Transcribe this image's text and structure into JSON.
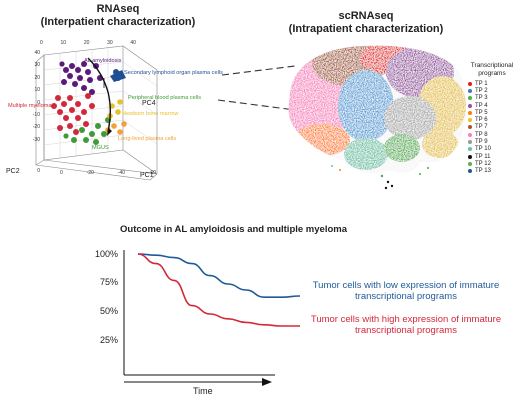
{
  "rnaseq": {
    "title": "RNAseq",
    "subtitle": "(Interpatient characterization)",
    "axes": {
      "pc1": "PC1",
      "pc2": "PC2",
      "pc4": "PC4"
    },
    "ticks_left": [
      "40",
      "30",
      "20",
      "10",
      "0",
      "-10",
      "-20",
      "-30",
      "-40"
    ],
    "ticks_top": [
      "0",
      "10",
      "20",
      "30",
      "40"
    ],
    "ticks_pc2": [
      "0",
      "-10",
      "-20",
      "-30",
      "-40"
    ],
    "ticks_pc1": [
      "0",
      "-20",
      "-40",
      "-60"
    ],
    "labels": {
      "al": "AL amyloidosis",
      "mm": "Multiple myeloma",
      "mgus": "MGUS",
      "slo": "Secondary lymphoid organ plasma cells",
      "pb": "Peripheral blood plasma cells",
      "nbm": "Newborn bone marrow",
      "llpc": "Long-lived plasma cells"
    },
    "colors": {
      "purple": "#5b1a7a",
      "red": "#d3283a",
      "green": "#3e9b38",
      "blue": "#1f4e94",
      "yellow": "#e6c22a",
      "orange": "#f2a03a"
    }
  },
  "scrnaseq": {
    "title": "scRNAseq",
    "subtitle": "(Intrapatient characterization)",
    "legend_title": "Transcriptional programs",
    "legend": [
      {
        "label": "TP 1",
        "color": "#e41a1c"
      },
      {
        "label": "TP 2",
        "color": "#377eb8"
      },
      {
        "label": "TP 3",
        "color": "#4daf4a"
      },
      {
        "label": "TP 4",
        "color": "#984ea3"
      },
      {
        "label": "TP 5",
        "color": "#ff7f00"
      },
      {
        "label": "TP 6",
        "color": "#e6c22a"
      },
      {
        "label": "TP 7",
        "color": "#a65628"
      },
      {
        "label": "TP 8",
        "color": "#f781bf"
      },
      {
        "label": "TP 9",
        "color": "#999999"
      },
      {
        "label": "TP 10",
        "color": "#66c2a5"
      },
      {
        "label": "TP 11",
        "color": "#111111"
      },
      {
        "label": "TP 12",
        "color": "#6aa84f"
      },
      {
        "label": "TP 13",
        "color": "#1b5e8c"
      }
    ]
  },
  "outcome": {
    "title": "Outcome in AL amyloidosis and multiple myeloma",
    "y_ticks": [
      "100%",
      "75%",
      "50%",
      "25%"
    ],
    "x_label": "Time",
    "low_label_1": "Tumor cells with low expression of immature",
    "low_label_2": "transcriptional programs",
    "high_label_1": "Tumor cells with high expression of immature",
    "high_label_2": "transcriptional programs",
    "low_color": "#1f5a9a",
    "high_color": "#d3283a",
    "low_curve_pct": [
      100,
      99,
      97,
      92,
      82,
      75,
      70,
      64,
      64,
      65
    ],
    "high_curve_pct": [
      100,
      92,
      78,
      57,
      50,
      46,
      43,
      41,
      40,
      40
    ]
  }
}
